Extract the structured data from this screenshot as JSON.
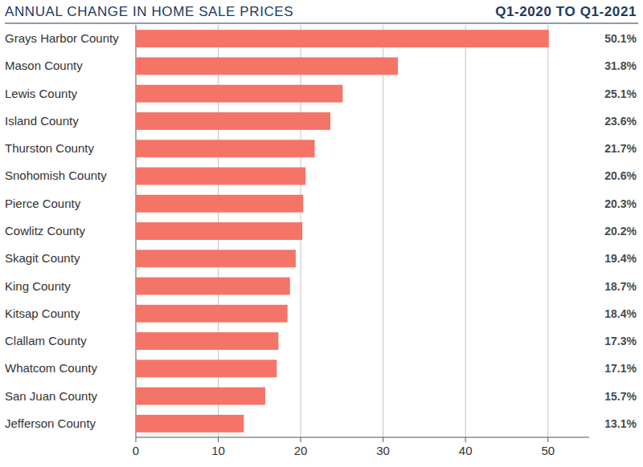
{
  "chart_data": {
    "type": "bar",
    "orientation": "horizontal",
    "title": "ANNUAL CHANGE IN HOME SALE PRICES",
    "subtitle": "Q1-2020 TO Q1-2021",
    "categories": [
      "Grays Harbor County",
      "Mason County",
      "Lewis County",
      "Island County",
      "Thurston County",
      "Snohomish County",
      "Pierce County",
      "Cowlitz County",
      "Skagit County",
      "King County",
      "Kitsap County",
      "Clallam County",
      "Whatcom County",
      "San Juan County",
      "Jefferson County"
    ],
    "values": [
      50.1,
      31.8,
      25.1,
      23.6,
      21.7,
      20.6,
      20.3,
      20.2,
      19.4,
      18.7,
      18.4,
      17.3,
      17.1,
      15.7,
      13.1
    ],
    "value_labels": [
      "50.1%",
      "31.8%",
      "25.1%",
      "23.6%",
      "21.7%",
      "20.6%",
      "20.3%",
      "20.2%",
      "19.4%",
      "18.7%",
      "18.4%",
      "17.3%",
      "17.1%",
      "15.7%",
      "13.1%"
    ],
    "color": "#f47468",
    "xlim": [
      0,
      55
    ],
    "xticks": [
      0,
      10,
      20,
      30,
      40,
      50
    ],
    "grid": true,
    "data_labels": true
  }
}
